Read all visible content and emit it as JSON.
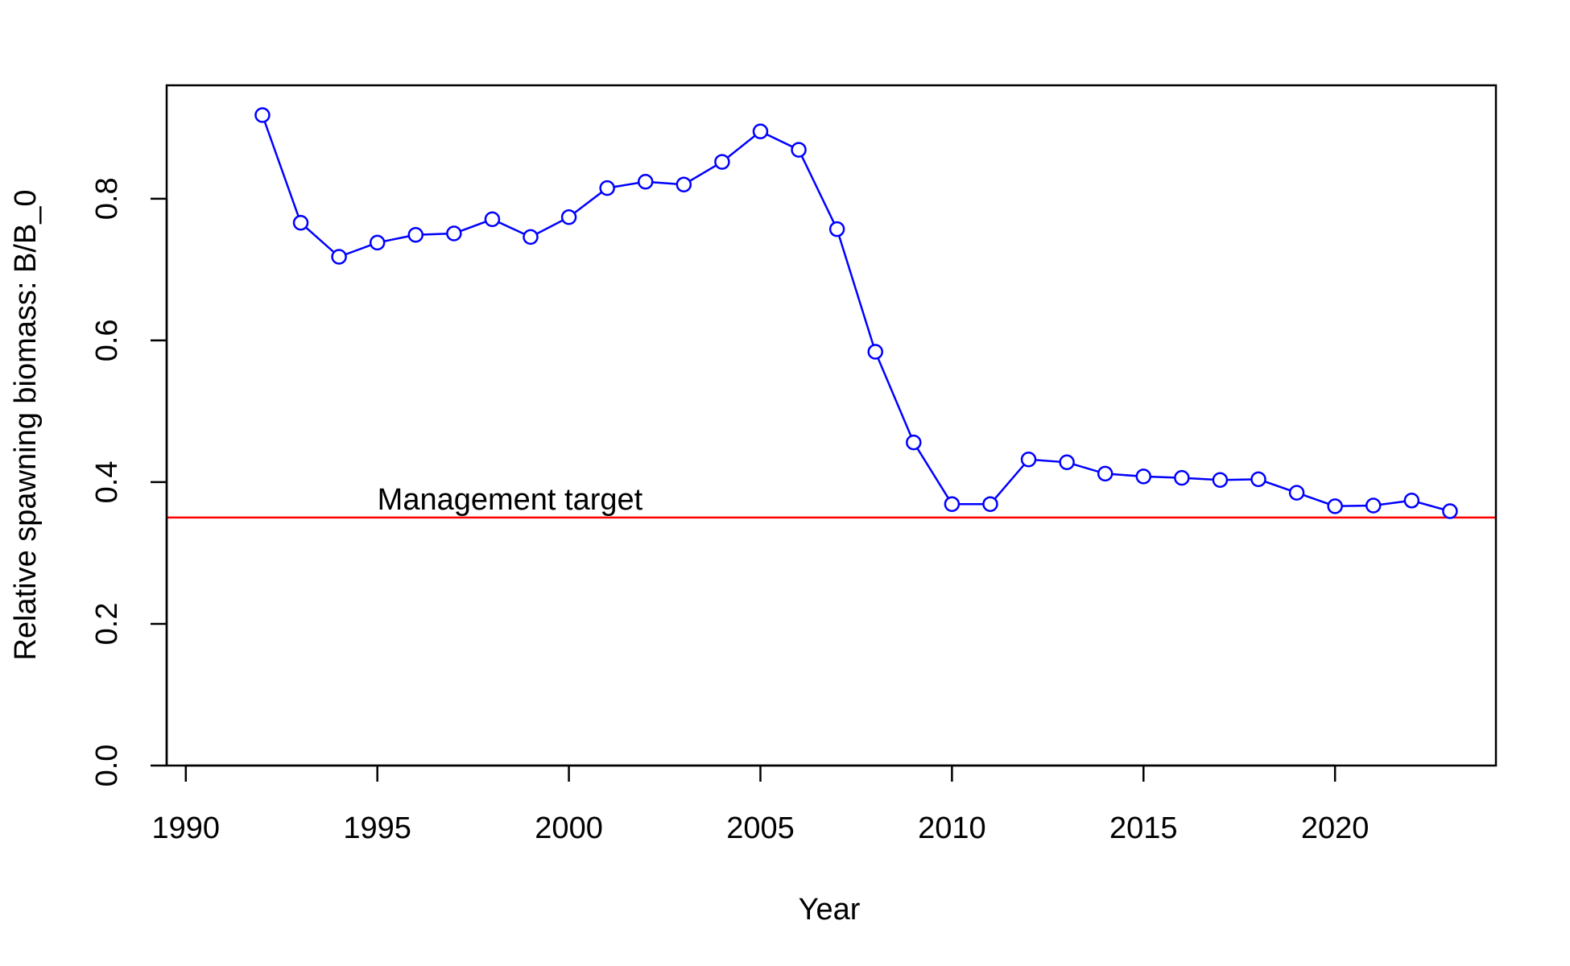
{
  "chart_data": {
    "type": "line",
    "xlabel": "Year",
    "ylabel": "Relative spawning biomass: B/B_0",
    "xlim": [
      1989.5,
      2024.2
    ],
    "ylim": [
      0,
      0.96
    ],
    "x_ticks": [
      1990,
      1995,
      2000,
      2005,
      2010,
      2015,
      2020
    ],
    "y_ticks": [
      0.0,
      0.2,
      0.4,
      0.6,
      0.8
    ],
    "y_tick_labels": [
      "0.0",
      "0.2",
      "0.4",
      "0.6",
      "0.8"
    ],
    "grid": false,
    "series": [
      {
        "color": "#0000ff",
        "marker": "open-circle",
        "x": [
          1992,
          1993,
          1994,
          1995,
          1996,
          1997,
          1998,
          1999,
          2000,
          2001,
          2002,
          2003,
          2004,
          2005,
          2006,
          2007,
          2008,
          2009,
          2010,
          2011,
          2012,
          2013,
          2014,
          2015,
          2016,
          2017,
          2018,
          2019,
          2020,
          2021,
          2022,
          2023
        ],
        "y": [
          0.918,
          0.766,
          0.718,
          0.738,
          0.749,
          0.751,
          0.771,
          0.746,
          0.774,
          0.815,
          0.824,
          0.82,
          0.852,
          0.895,
          0.869,
          0.757,
          0.584,
          0.456,
          0.369,
          0.369,
          0.432,
          0.428,
          0.412,
          0.408,
          0.406,
          0.403,
          0.404,
          0.385,
          0.366,
          0.367,
          0.374,
          0.359
        ]
      }
    ],
    "reference_line": {
      "y": 0.35,
      "color": "#ff0000",
      "label": "Management target",
      "label_x": 1995
    }
  }
}
